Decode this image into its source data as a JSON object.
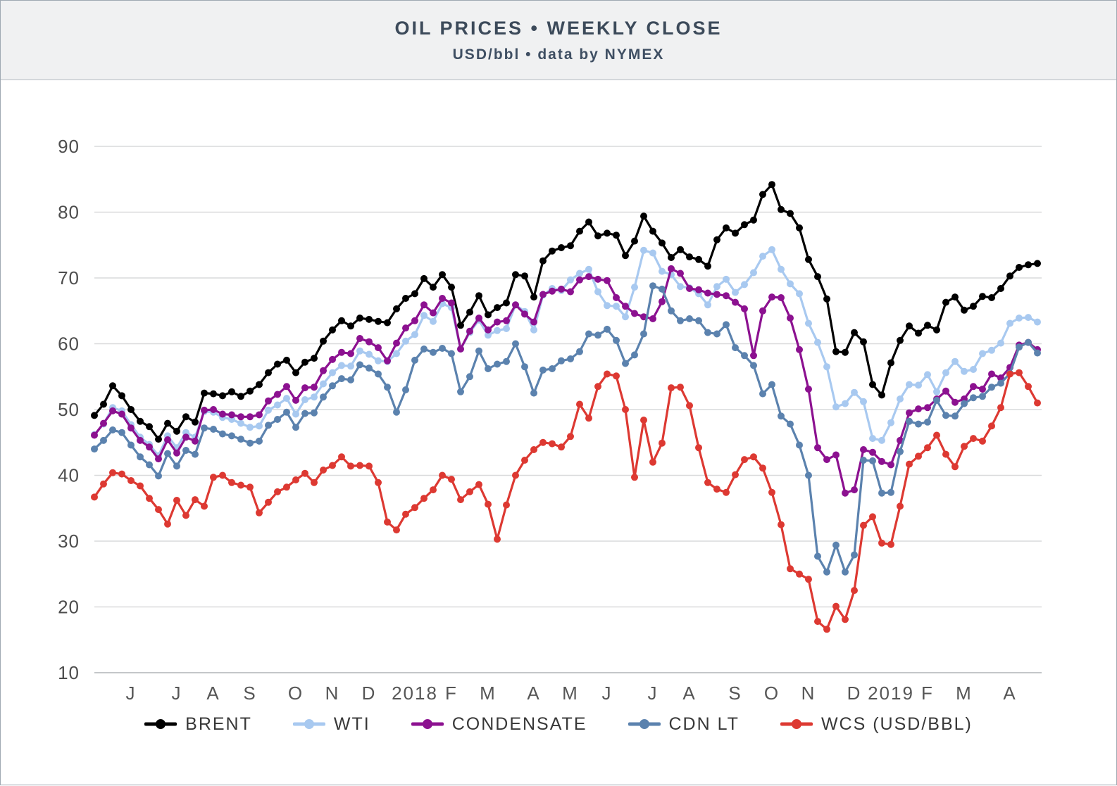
{
  "header": {
    "title": "OIL PRICES • WEEKLY CLOSE",
    "subtitle": "USD/bbl • data by NYMEX"
  },
  "chart_data": {
    "type": "line",
    "title": "OIL PRICES • WEEKLY CLOSE",
    "subtitle": "USD/bbl • data by NYMEX",
    "ylabel": "USD/bbl",
    "ylim": [
      10,
      90
    ],
    "y_ticks": [
      90,
      80,
      70,
      60,
      50,
      40,
      30,
      20,
      10
    ],
    "grid": "horizontal",
    "legend_position": "bottom",
    "x_tick_labels": [
      {
        "label": "J",
        "week": 5
      },
      {
        "label": "J",
        "week": 10
      },
      {
        "label": "A",
        "week": 14
      },
      {
        "label": "S",
        "week": 18
      },
      {
        "label": "O",
        "week": 23
      },
      {
        "label": "N",
        "week": 27
      },
      {
        "label": "D",
        "week": 31
      },
      {
        "label": "2018",
        "week": 36
      },
      {
        "label": "F",
        "week": 40
      },
      {
        "label": "M",
        "week": 44
      },
      {
        "label": "A",
        "week": 49
      },
      {
        "label": "M",
        "week": 53
      },
      {
        "label": "J",
        "week": 57
      },
      {
        "label": "J",
        "week": 62
      },
      {
        "label": "A",
        "week": 66
      },
      {
        "label": "S",
        "week": 71
      },
      {
        "label": "O",
        "week": 75
      },
      {
        "label": "N",
        "week": 79
      },
      {
        "label": "D",
        "week": 84
      },
      {
        "label": "2019",
        "week": 88
      },
      {
        "label": "F",
        "week": 92
      },
      {
        "label": "M",
        "week": 96
      },
      {
        "label": "A",
        "week": 101
      }
    ],
    "x": [
      "2017-05-05",
      "2017-05-12",
      "2017-05-19",
      "2017-05-26",
      "2017-06-02",
      "2017-06-09",
      "2017-06-16",
      "2017-06-23",
      "2017-06-30",
      "2017-07-07",
      "2017-07-14",
      "2017-07-21",
      "2017-07-28",
      "2017-08-04",
      "2017-08-11",
      "2017-08-18",
      "2017-08-25",
      "2017-09-01",
      "2017-09-08",
      "2017-09-15",
      "2017-09-22",
      "2017-09-29",
      "2017-10-06",
      "2017-10-13",
      "2017-10-20",
      "2017-10-27",
      "2017-11-03",
      "2017-11-10",
      "2017-11-17",
      "2017-11-24",
      "2017-12-01",
      "2017-12-08",
      "2017-12-15",
      "2017-12-22",
      "2017-12-29",
      "2018-01-05",
      "2018-01-12",
      "2018-01-19",
      "2018-01-26",
      "2018-02-02",
      "2018-02-09",
      "2018-02-16",
      "2018-02-23",
      "2018-03-02",
      "2018-03-09",
      "2018-03-16",
      "2018-03-23",
      "2018-03-30",
      "2018-04-06",
      "2018-04-13",
      "2018-04-20",
      "2018-04-27",
      "2018-05-04",
      "2018-05-11",
      "2018-05-18",
      "2018-05-25",
      "2018-06-01",
      "2018-06-08",
      "2018-06-15",
      "2018-06-22",
      "2018-06-29",
      "2018-07-06",
      "2018-07-13",
      "2018-07-20",
      "2018-07-27",
      "2018-08-03",
      "2018-08-10",
      "2018-08-17",
      "2018-08-24",
      "2018-08-31",
      "2018-09-07",
      "2018-09-14",
      "2018-09-21",
      "2018-09-28",
      "2018-10-05",
      "2018-10-12",
      "2018-10-19",
      "2018-10-26",
      "2018-11-02",
      "2018-11-09",
      "2018-11-16",
      "2018-11-23",
      "2018-11-30",
      "2018-12-07",
      "2018-12-14",
      "2018-12-21",
      "2018-12-28",
      "2019-01-04",
      "2019-01-11",
      "2019-01-18",
      "2019-01-25",
      "2019-02-01",
      "2019-02-08",
      "2019-02-15",
      "2019-02-22",
      "2019-03-01",
      "2019-03-08",
      "2019-03-15",
      "2019-03-22",
      "2019-03-29",
      "2019-04-05",
      "2019-04-12",
      "2019-04-19",
      "2019-04-26"
    ],
    "series": [
      {
        "name": "BRENT",
        "color": "#000000",
        "values": [
          49.1,
          50.8,
          53.6,
          52.1,
          50.0,
          48.2,
          47.4,
          45.5,
          47.9,
          46.7,
          48.9,
          48.1,
          52.5,
          52.4,
          52.1,
          52.7,
          52.0,
          52.8,
          53.8,
          55.6,
          56.9,
          57.5,
          55.6,
          57.2,
          57.8,
          60.4,
          62.1,
          63.5,
          62.7,
          63.9,
          63.7,
          63.4,
          63.2,
          65.3,
          66.9,
          67.6,
          69.9,
          68.6,
          70.5,
          68.6,
          62.8,
          64.8,
          67.3,
          64.4,
          65.5,
          66.2,
          70.5,
          70.3,
          67.1,
          72.6,
          74.1,
          74.6,
          74.9,
          77.1,
          78.5,
          76.4,
          76.8,
          76.5,
          73.4,
          75.6,
          79.4,
          77.1,
          75.3,
          73.1,
          74.3,
          73.2,
          72.8,
          71.8,
          75.8,
          77.6,
          76.8,
          78.1,
          78.8,
          82.7,
          84.2,
          80.4,
          79.8,
          77.6,
          72.8,
          70.2,
          66.8,
          58.8,
          58.7,
          61.7,
          60.3,
          53.8,
          52.2,
          57.1,
          60.5,
          62.7,
          61.6,
          62.8,
          62.1,
          66.3,
          67.1,
          65.1,
          65.7,
          67.2,
          67.0,
          68.4,
          70.3,
          71.6,
          72.0,
          72.2
        ]
      },
      {
        "name": "WTI",
        "color": "#a8c9f0",
        "values": [
          46.2,
          47.8,
          50.3,
          49.8,
          47.7,
          45.8,
          44.7,
          43.0,
          46.0,
          44.2,
          46.5,
          45.8,
          49.7,
          49.6,
          48.8,
          48.5,
          47.9,
          47.3,
          47.5,
          49.9,
          50.7,
          51.7,
          49.3,
          51.5,
          51.9,
          53.9,
          55.6,
          56.7,
          56.6,
          58.9,
          58.4,
          57.4,
          57.3,
          58.5,
          60.4,
          61.4,
          64.3,
          63.4,
          66.1,
          65.5,
          59.2,
          61.7,
          63.6,
          61.3,
          62.0,
          62.3,
          65.9,
          64.9,
          62.1,
          67.4,
          68.4,
          68.1,
          69.7,
          70.7,
          71.3,
          67.9,
          65.8,
          65.7,
          64.1,
          68.6,
          74.2,
          73.8,
          71.0,
          70.5,
          68.7,
          68.5,
          67.6,
          65.9,
          68.7,
          69.8,
          67.8,
          69.0,
          70.8,
          73.3,
          74.3,
          71.3,
          69.1,
          67.6,
          63.1,
          60.2,
          56.5,
          50.4,
          50.9,
          52.6,
          51.2,
          45.6,
          45.3,
          48.0,
          51.6,
          53.8,
          53.7,
          55.3,
          52.7,
          55.6,
          57.3,
          55.8,
          56.1,
          58.5,
          59.0,
          60.1,
          63.1,
          63.9,
          64.0,
          63.3
        ]
      },
      {
        "name": "CONDENSATE",
        "color": "#8c1190",
        "values": [
          46.1,
          47.9,
          49.8,
          49.3,
          47.2,
          45.3,
          44.3,
          42.5,
          45.4,
          43.4,
          45.8,
          45.2,
          49.9,
          50.0,
          49.3,
          49.2,
          48.9,
          48.9,
          49.2,
          51.3,
          52.3,
          53.5,
          51.4,
          53.3,
          53.4,
          55.9,
          57.6,
          58.7,
          58.5,
          60.8,
          60.3,
          59.4,
          57.4,
          60.1,
          62.4,
          63.5,
          65.9,
          64.7,
          66.9,
          66.2,
          59.2,
          61.9,
          63.9,
          62.1,
          63.3,
          63.5,
          65.9,
          64.5,
          63.3,
          67.5,
          68.0,
          68.3,
          67.9,
          69.7,
          70.2,
          69.8,
          69.6,
          67.0,
          65.7,
          64.6,
          64.1,
          63.8,
          66.4,
          71.4,
          70.7,
          68.4,
          68.2,
          67.7,
          67.5,
          67.3,
          66.3,
          65.3,
          58.2,
          65.0,
          67.1,
          67.0,
          63.9,
          59.1,
          53.1,
          44.2,
          42.4,
          43.1,
          37.3,
          37.8,
          43.9,
          43.5,
          42.1,
          41.6,
          45.3,
          49.5,
          50.1,
          50.3,
          51.6,
          52.8,
          51.1,
          51.6,
          53.5,
          53.1,
          55.4,
          54.8,
          56.4,
          59.8,
          60.2,
          59.1
        ]
      },
      {
        "name": "CDN LT",
        "color": "#5b82ae",
        "values": [
          44.0,
          45.3,
          46.9,
          46.5,
          44.6,
          42.8,
          41.6,
          39.9,
          43.3,
          41.4,
          43.8,
          43.2,
          47.2,
          47.0,
          46.3,
          46.0,
          45.5,
          44.9,
          45.2,
          47.6,
          48.5,
          49.6,
          47.3,
          49.4,
          49.5,
          51.9,
          53.6,
          54.7,
          54.5,
          56.8,
          56.3,
          55.4,
          53.4,
          49.6,
          53.0,
          57.5,
          59.2,
          58.7,
          59.3,
          58.5,
          52.7,
          55.0,
          58.9,
          56.2,
          56.9,
          57.3,
          60.0,
          56.5,
          52.5,
          56.0,
          56.2,
          57.4,
          57.7,
          58.8,
          61.5,
          61.3,
          62.2,
          60.5,
          57.0,
          58.3,
          61.5,
          68.8,
          68.3,
          65.0,
          63.5,
          63.8,
          63.5,
          61.7,
          61.5,
          62.9,
          59.4,
          58.2,
          56.7,
          52.4,
          53.8,
          49.0,
          47.8,
          44.6,
          40.0,
          27.7,
          25.3,
          29.4,
          25.3,
          27.9,
          42.3,
          42.2,
          37.3,
          37.4,
          43.6,
          48.2,
          47.8,
          48.1,
          51.4,
          49.1,
          49.0,
          50.9,
          51.8,
          52.0,
          53.4,
          54.0,
          55.5,
          59.5,
          60.2,
          58.6
        ]
      },
      {
        "name": "WCS (USD/BBL)",
        "color": "#dd3932",
        "values": [
          36.7,
          38.7,
          40.4,
          40.2,
          39.2,
          38.4,
          36.5,
          34.8,
          32.6,
          36.2,
          33.9,
          36.3,
          35.3,
          39.7,
          40.0,
          38.9,
          38.5,
          38.2,
          34.3,
          35.9,
          37.5,
          38.2,
          39.3,
          40.3,
          38.9,
          40.8,
          41.5,
          42.8,
          41.4,
          41.5,
          41.4,
          38.9,
          32.9,
          31.7,
          34.1,
          35.1,
          36.5,
          37.8,
          40.0,
          39.4,
          36.3,
          37.5,
          38.6,
          35.6,
          30.3,
          35.5,
          40.0,
          42.3,
          43.9,
          45.0,
          44.8,
          44.3,
          45.9,
          50.8,
          48.7,
          53.5,
          55.4,
          55.1,
          50.0,
          39.7,
          48.4,
          42.0,
          44.9,
          53.3,
          53.4,
          50.6,
          44.2,
          38.9,
          37.9,
          37.4,
          40.1,
          42.4,
          42.8,
          41.1,
          37.4,
          32.5,
          25.8,
          25.0,
          24.2,
          17.8,
          16.6,
          20.1,
          18.1,
          22.5,
          32.4,
          33.7,
          29.7,
          29.5,
          35.3,
          41.7,
          42.9,
          44.2,
          46.1,
          43.2,
          41.3,
          44.4,
          45.6,
          45.2,
          47.5,
          50.3,
          55.4,
          55.6,
          53.5,
          51.0
        ]
      }
    ]
  }
}
